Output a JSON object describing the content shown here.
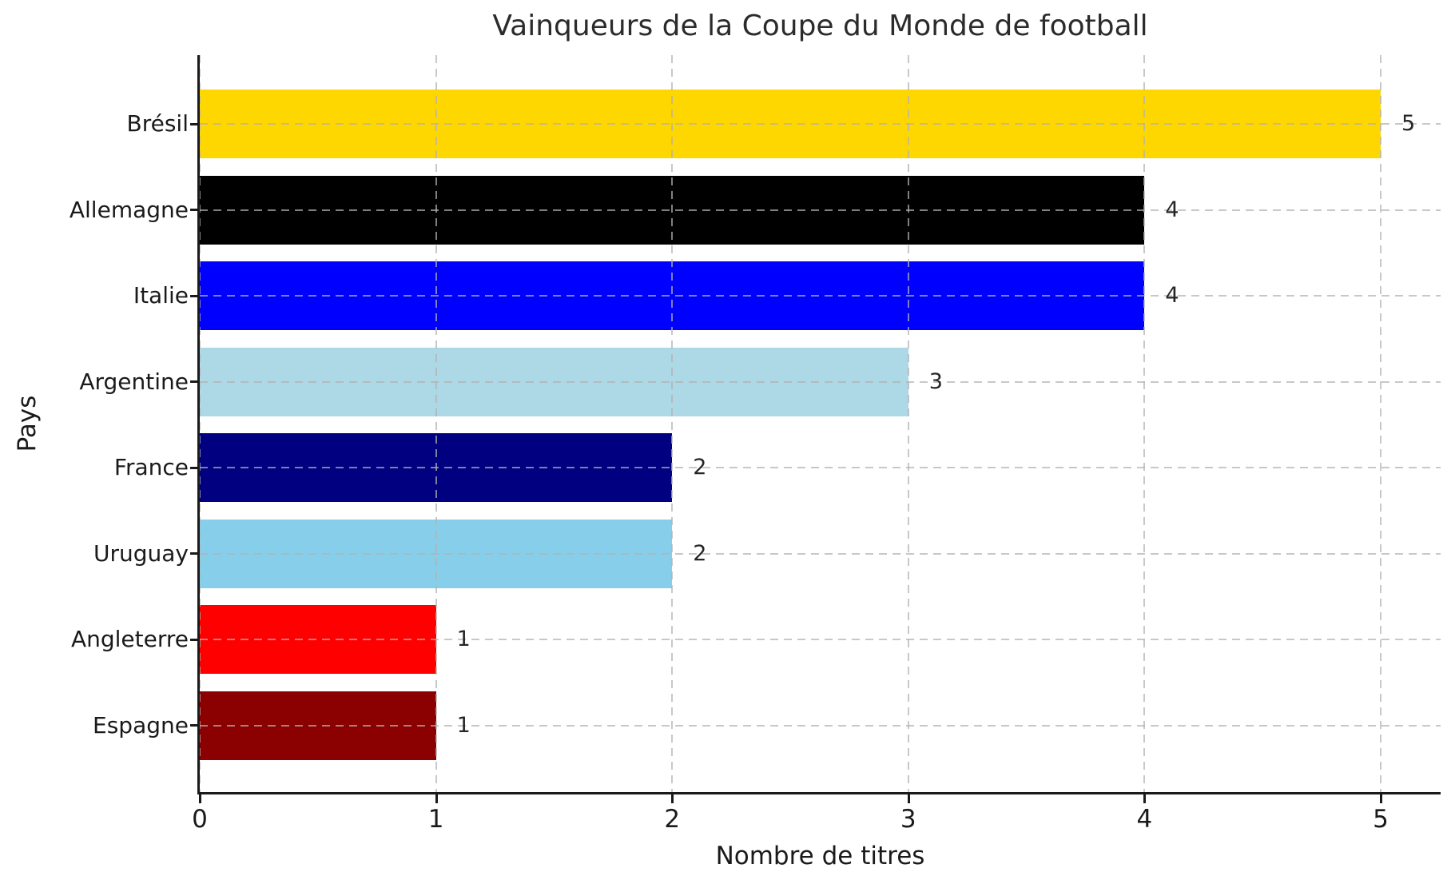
{
  "chart_data": {
    "type": "bar",
    "orientation": "horizontal",
    "title": "Vainqueurs de la Coupe du Monde de football",
    "xlabel": "Nombre de titres",
    "ylabel": "Pays",
    "categories": [
      "Brésil",
      "Allemagne",
      "Italie",
      "Argentine",
      "France",
      "Uruguay",
      "Angleterre",
      "Espagne"
    ],
    "values": [
      5,
      4,
      4,
      3,
      2,
      2,
      1,
      1
    ],
    "value_labels": [
      "5",
      "4",
      "4",
      "3",
      "2",
      "2",
      "1",
      "1"
    ],
    "bar_colors": [
      "#FFD700",
      "#000000",
      "#0000FF",
      "#ADD8E6",
      "#000080",
      "#87CEEB",
      "#FF0000",
      "#8B0000"
    ],
    "x_ticks": [
      0,
      1,
      2,
      3,
      4,
      5
    ],
    "x_tick_labels": [
      "0",
      "1",
      "2",
      "3",
      "4",
      "5"
    ],
    "xlim": [
      0,
      5.25
    ],
    "grid": "dashed, both axes, drawn over bars",
    "grid_color": "#b2b2b2",
    "spine_color": "#1a1a1a",
    "background_color": "#ffffff",
    "legend": "none"
  }
}
